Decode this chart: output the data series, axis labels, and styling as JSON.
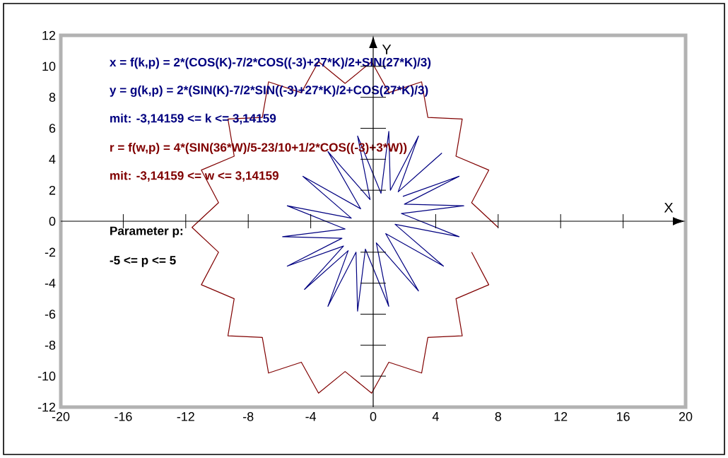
{
  "chart_data": {
    "type": "line",
    "xlabel": "X",
    "ylabel": "Y",
    "xlim": [
      -20,
      20
    ],
    "ylim": [
      -12,
      12
    ],
    "xticks": [
      -20,
      -16,
      -12,
      -8,
      -4,
      0,
      4,
      8,
      12,
      16,
      20
    ],
    "yticks": [
      -12,
      -10,
      -8,
      -6,
      -4,
      -2,
      0,
      2,
      4,
      6,
      8,
      10,
      12
    ],
    "marker": "none",
    "line_style": "solid",
    "annotations": [
      "x = f(k,p) = 2*(COS(K)-7/2*COS((-3)+27*K)/2+SIN(27*K)/3)",
      "y = g(k,p) = 2*(SIN(K)-7/2*SIN((-3)+27*K)/2+COS(27*K)/3)",
      "mit: -3,14159 <= k <= 3,14159",
      "r = f(w,p) = 4*(SIN(36*W)/5-23/10+1/2*COS((-3)+3*W))",
      "mit: -3,14159 <= w <= 3,14159",
      "Parameter p:",
      "-5 <= p <= 5"
    ],
    "series": [
      {
        "color": "#000080",
        "x": [
          4.4,
          1.6,
          2.9,
          1.1,
          1.0,
          0.5,
          -1.0,
          -0.2,
          -2.9,
          -0.8,
          -4.5,
          -1.4,
          -5.5,
          -1.8,
          -5.8,
          -2.0,
          -5.5,
          -1.9,
          -4.4,
          -1.6,
          -2.9,
          -1.1,
          -1.0,
          -0.5,
          1.0,
          0.2,
          2.9,
          0.8,
          4.5,
          1.4,
          5.5,
          1.8,
          5.8,
          2.0,
          5.5,
          1.9
        ],
        "values": [
          4.4,
          1.9,
          5.5,
          2.0,
          5.8,
          1.8,
          5.5,
          1.4,
          4.5,
          0.8,
          2.9,
          0.2,
          1.0,
          -0.5,
          -1.0,
          -1.1,
          -2.9,
          -1.6,
          -4.4,
          -1.9,
          -5.5,
          -2.0,
          -5.8,
          -1.8,
          -5.5,
          -1.4,
          -4.5,
          -0.8,
          -2.9,
          -0.2,
          -1.0,
          0.5,
          1.0,
          1.1,
          2.9,
          1.6
        ]
      },
      {
        "color": "#800000",
        "x": [
          8.0,
          6.3,
          7.4,
          5.3,
          5.7,
          3.5,
          3.1,
          1.0,
          -0.1,
          -1.8,
          -3.5,
          -4.6,
          -6.7,
          -7.1,
          -9.3,
          -8.9,
          -11.0,
          -9.9,
          -11.6,
          -9.9,
          -11.0,
          -8.9,
          -9.3,
          -7.1,
          -6.7,
          -4.6,
          -3.5,
          -1.8,
          -0.1,
          1.0,
          3.1,
          3.5,
          5.7,
          5.3,
          7.4,
          6.3
        ],
        "values": [
          -0.4,
          1.2,
          3.3,
          4.2,
          6.6,
          6.7,
          9.0,
          8.3,
          10.3,
          8.9,
          10.3,
          8.3,
          9.0,
          6.7,
          6.6,
          4.2,
          3.3,
          1.2,
          -0.4,
          -2.0,
          -4.1,
          -5.0,
          -7.4,
          -7.5,
          -9.8,
          -9.1,
          -11.1,
          -9.7,
          -11.1,
          -9.1,
          -9.8,
          -7.5,
          -7.4,
          -5.0,
          -4.1,
          -2.0
        ]
      }
    ]
  }
}
